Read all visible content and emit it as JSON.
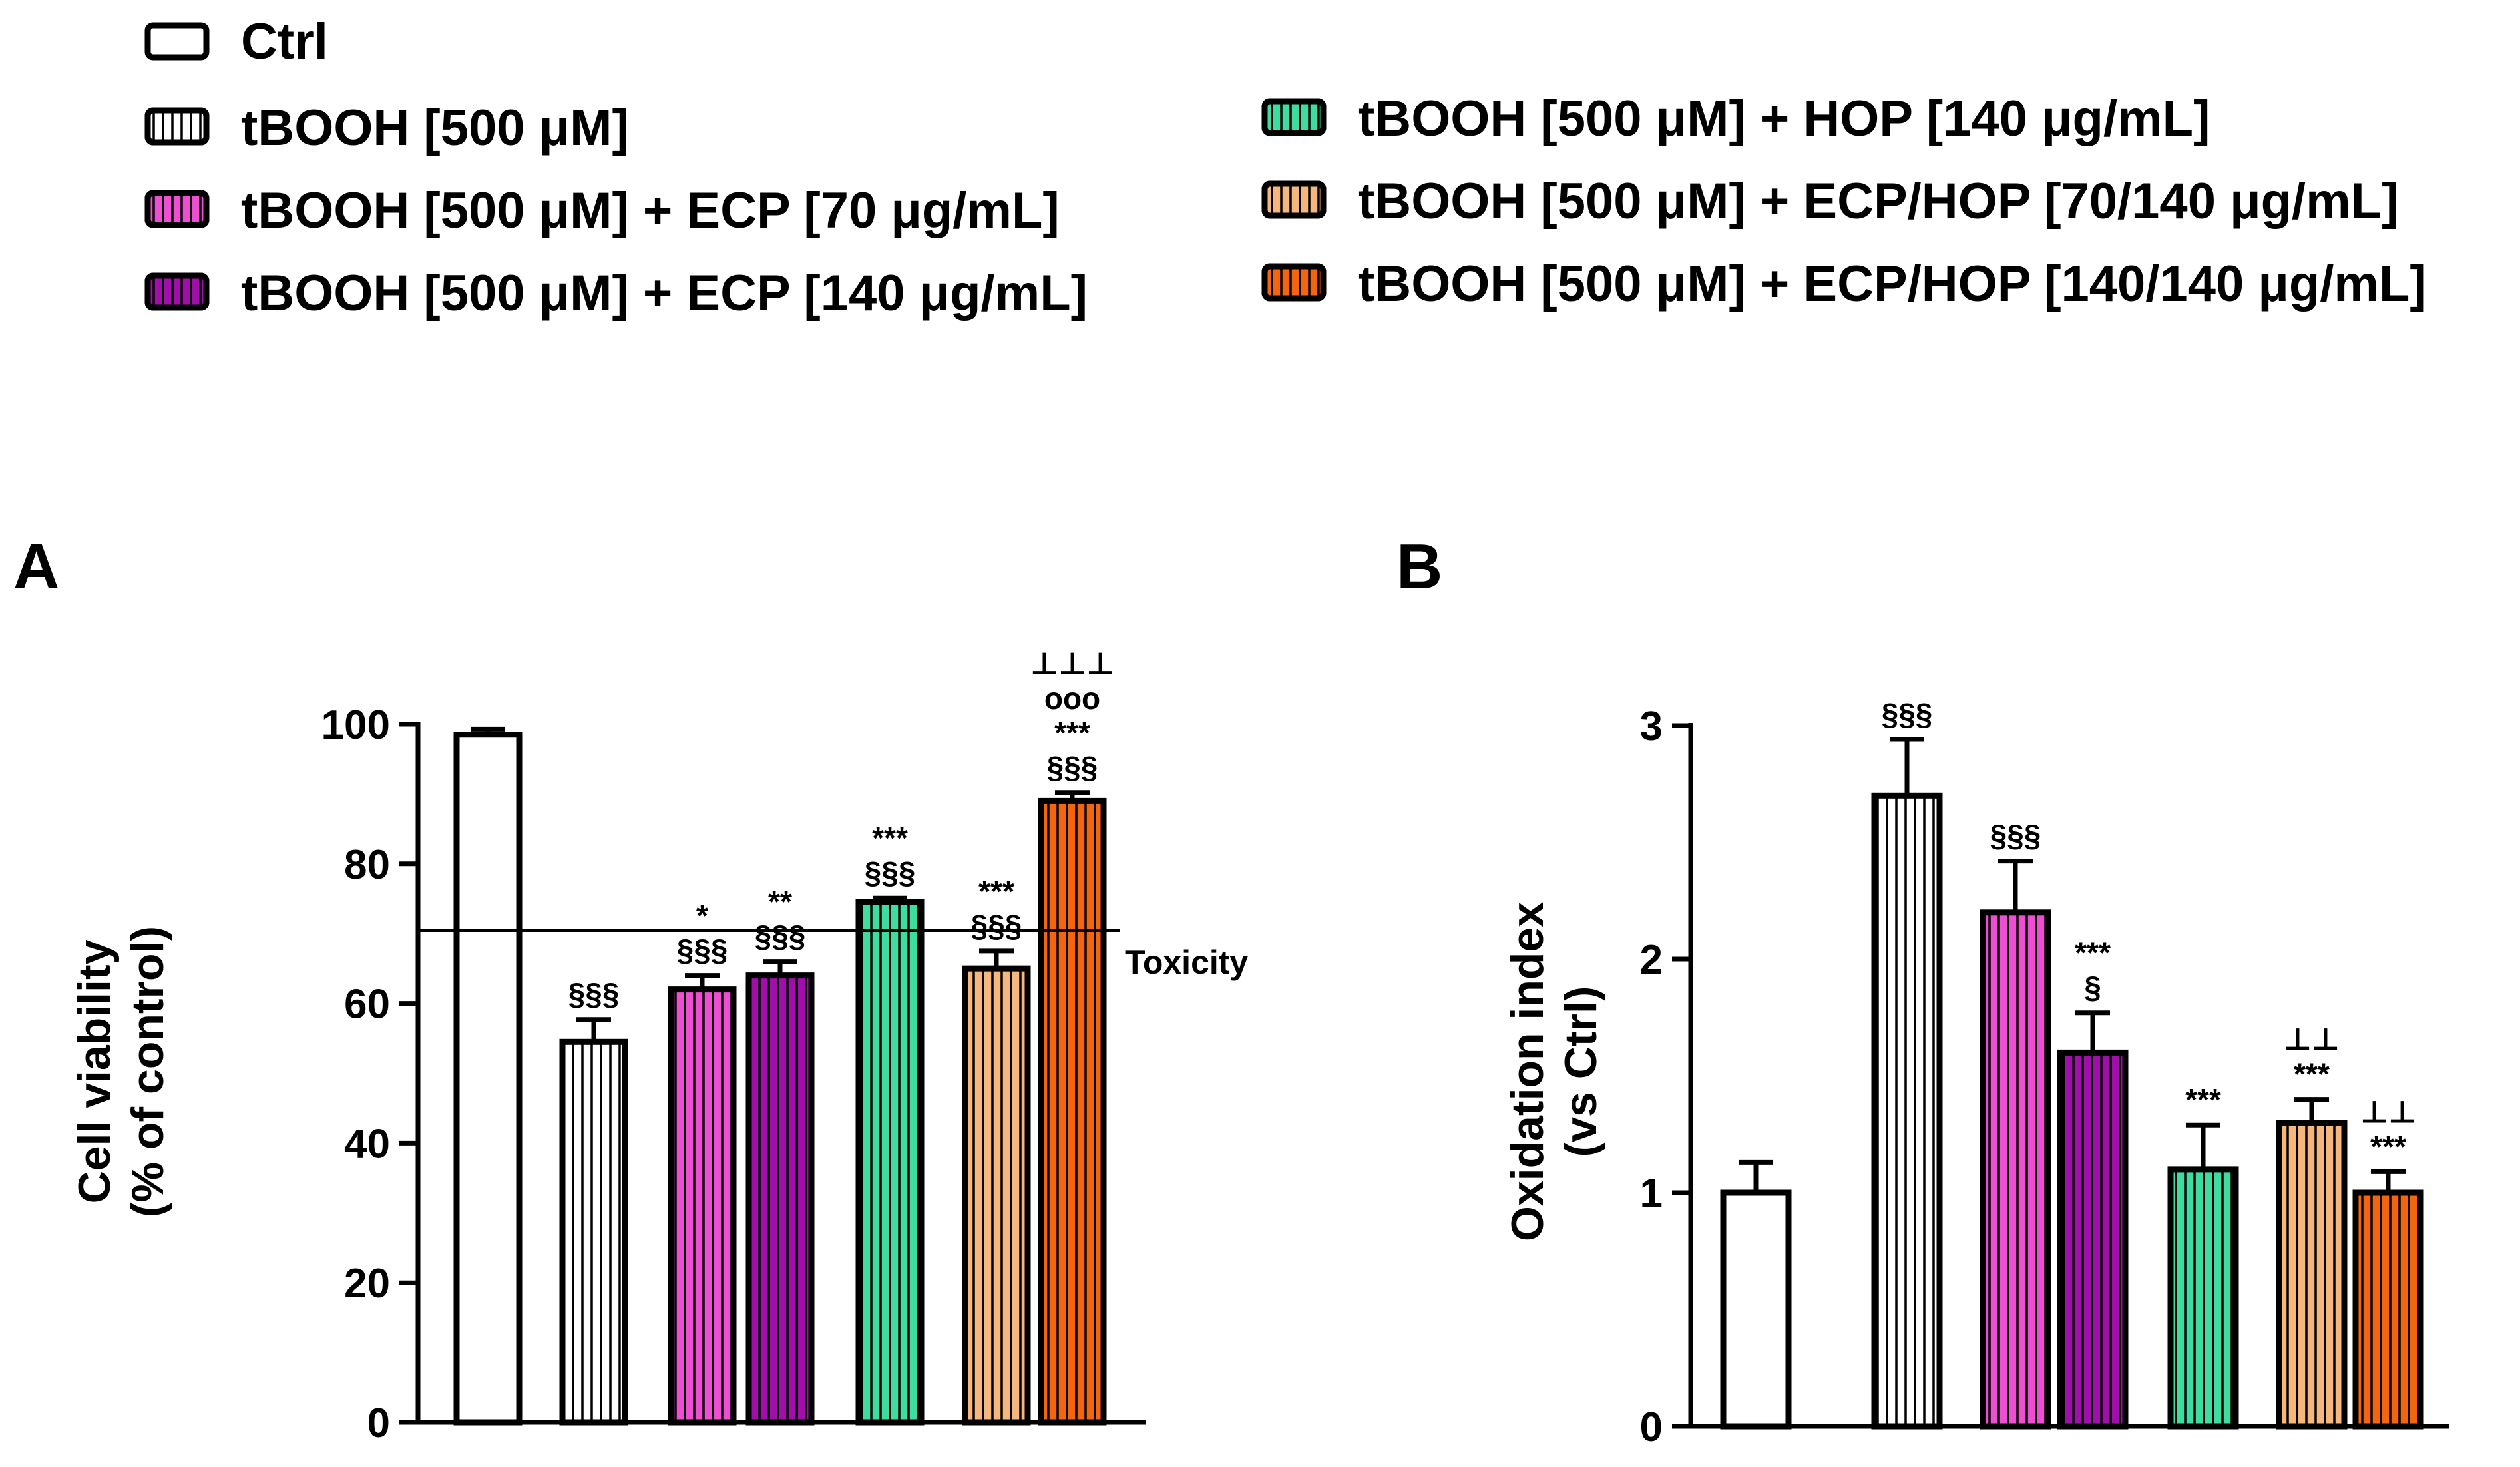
{
  "legend": [
    {
      "label": "Ctrl",
      "color": "#ffffff",
      "hatch": false
    },
    {
      "label": "tBOOH [500 μM]",
      "color": "#ffffff",
      "hatch": true
    },
    {
      "label": "tBOOH [500 μM] + ECP [70 μg/mL]",
      "color": "#ee4fd2",
      "hatch": true
    },
    {
      "label": "tBOOH [500 μM] + ECP [140 μg/mL]",
      "color": "#a00faa",
      "hatch": true
    },
    {
      "label": "tBOOH [500 μM] + HOP [140 μg/mL]",
      "color": "#3ddc9f",
      "hatch": true
    },
    {
      "label": "tBOOH [500 μM] + ECP/HOP [70/140 μg/mL]",
      "color": "#f6b77d",
      "hatch": true
    },
    {
      "label": "tBOOH [500 μM] + ECP/HOP [140/140 μg/mL]",
      "color": "#f4650d",
      "hatch": true
    }
  ],
  "chart_data": [
    {
      "type": "bar",
      "panel": "A",
      "title": "",
      "xlabel": "",
      "ylabel": [
        "Cell viability",
        "(% of control)"
      ],
      "ylim": [
        0,
        100
      ],
      "yticks": [
        0,
        20,
        40,
        60,
        80,
        100
      ],
      "categories": [
        "Ctrl",
        "tBOOH [500 μM]",
        "tBOOH [500 μM] + ECP [70 μg/mL]",
        "tBOOH [500 μM] + ECP [140 μg/mL]",
        "tBOOH [500 μM] + HOP [140 μg/mL]",
        "tBOOH [500 μM] + ECP/HOP [70/140 μg/mL]",
        "tBOOH [500 μM] + ECP/HOP [140/140 μg/mL]"
      ],
      "values": [
        98.5,
        54.5,
        62,
        64,
        74.5,
        65,
        89
      ],
      "errors": [
        0.8,
        3.2,
        2,
        2,
        0.6,
        2.5,
        1.2
      ],
      "annotations": [
        [],
        [
          "§§§"
        ],
        [
          "*",
          "§§§"
        ],
        [
          "**",
          "§§§"
        ],
        [
          "***",
          "§§§"
        ],
        [
          "***",
          "§§§"
        ],
        [
          "⊥⊥⊥",
          "ooo",
          "***",
          "§§§"
        ]
      ],
      "reference_line": {
        "value": 70.5,
        "label": "Toxicity"
      }
    },
    {
      "type": "bar",
      "panel": "B",
      "title": "",
      "xlabel": "",
      "ylabel": [
        "Oxidation index",
        "(vs Ctrl)"
      ],
      "ylim": [
        0,
        3
      ],
      "yticks": [
        0,
        1,
        2,
        3
      ],
      "categories": [
        "Ctrl",
        "tBOOH [500 μM]",
        "tBOOH [500 μM] + ECP [70 μg/mL]",
        "tBOOH [500 μM] + ECP [140 μg/mL]",
        "tBOOH [500 μM] + HOP [140 μg/mL]",
        "tBOOH [500 μM] + ECP/HOP [70/140 μg/mL]",
        "tBOOH [500 μM] + ECP/HOP [140/140 μg/mL]"
      ],
      "values": [
        1.0,
        2.7,
        2.2,
        1.6,
        1.1,
        1.3,
        1.0
      ],
      "errors": [
        0.13,
        0.24,
        0.22,
        0.17,
        0.19,
        0.1,
        0.09
      ],
      "annotations": [
        [],
        [
          "§§§"
        ],
        [
          "§§§"
        ],
        [
          "***",
          "§"
        ],
        [
          "***"
        ],
        [
          "⊥⊥",
          "***"
        ],
        [
          "⊥⊥",
          "***"
        ]
      ]
    }
  ]
}
